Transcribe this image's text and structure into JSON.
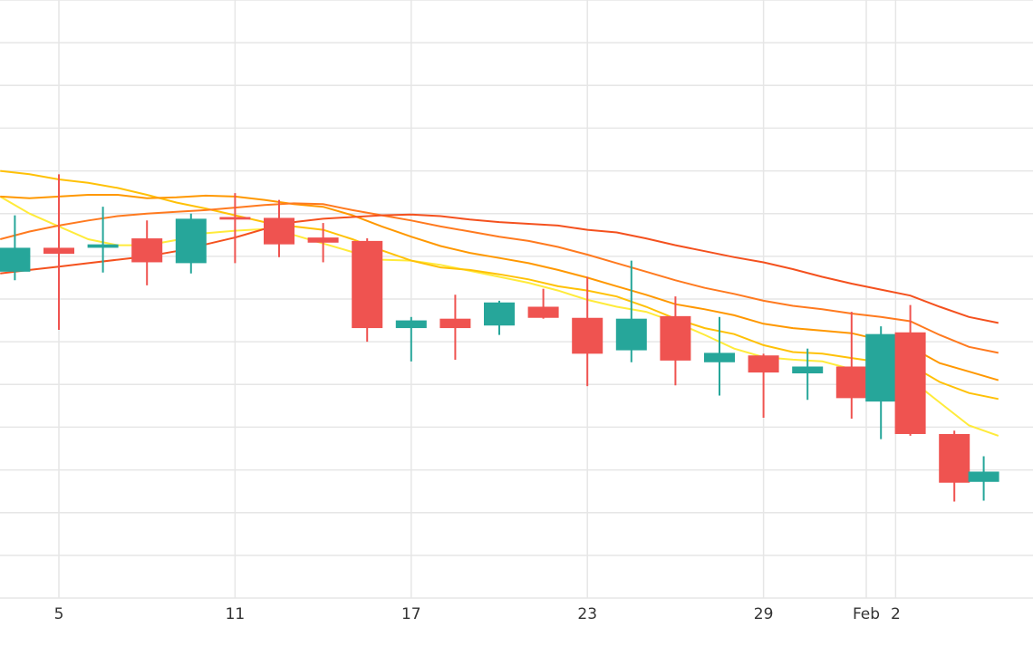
{
  "chart_data": {
    "type": "candlestick",
    "title": "",
    "xlabel": "",
    "ylabel": "",
    "x_ticks": [
      {
        "day": 5,
        "label": "5"
      },
      {
        "day": 11,
        "label": "11"
      },
      {
        "day": 17,
        "label": "17"
      },
      {
        "day": 23,
        "label": "23"
      },
      {
        "day": 29,
        "label": "29"
      },
      {
        "day": 32.5,
        "label": "Feb"
      },
      {
        "day": 33.5,
        "label": "2"
      }
    ],
    "x_range": [
      3,
      36.5
    ],
    "y_range": [
      0,
      70
    ],
    "grid": true,
    "up_color": "#26a69a",
    "down_color": "#ef5350",
    "candles": [
      {
        "day": 3.5,
        "open": 38.2,
        "high": 44.8,
        "low": 37.2,
        "close": 41.0
      },
      {
        "day": 5,
        "open": 41.0,
        "high": 49.6,
        "low": 31.4,
        "close": 40.3
      },
      {
        "day": 6.5,
        "open": 41.0,
        "high": 45.8,
        "low": 38.1,
        "close": 41.4
      },
      {
        "day": 8,
        "open": 42.1,
        "high": 44.2,
        "low": 36.6,
        "close": 39.3
      },
      {
        "day": 9.5,
        "open": 39.2,
        "high": 45.0,
        "low": 38.0,
        "close": 44.4
      },
      {
        "day": 11,
        "open": 44.6,
        "high": 47.4,
        "low": 39.2,
        "close": 44.3
      },
      {
        "day": 12.5,
        "open": 44.5,
        "high": 46.6,
        "low": 39.9,
        "close": 41.4
      },
      {
        "day": 14,
        "open": 42.2,
        "high": 43.9,
        "low": 39.3,
        "close": 41.6
      },
      {
        "day": 15.5,
        "open": 41.8,
        "high": 42.1,
        "low": 30.0,
        "close": 31.6
      },
      {
        "day": 17,
        "open": 31.6,
        "high": 32.9,
        "low": 27.7,
        "close": 32.5
      },
      {
        "day": 18.5,
        "open": 32.7,
        "high": 35.5,
        "low": 27.9,
        "close": 31.6
      },
      {
        "day": 20,
        "open": 31.9,
        "high": 34.8,
        "low": 30.8,
        "close": 34.6
      },
      {
        "day": 21.5,
        "open": 34.1,
        "high": 36.2,
        "low": 32.7,
        "close": 32.8
      },
      {
        "day": 23,
        "open": 32.8,
        "high": 37.6,
        "low": 24.8,
        "close": 28.6
      },
      {
        "day": 24.5,
        "open": 29.0,
        "high": 39.5,
        "low": 27.6,
        "close": 32.7
      },
      {
        "day": 26,
        "open": 33.0,
        "high": 35.3,
        "low": 24.9,
        "close": 27.8
      },
      {
        "day": 27.5,
        "open": 27.6,
        "high": 32.9,
        "low": 23.7,
        "close": 28.7
      },
      {
        "day": 29,
        "open": 28.4,
        "high": 28.6,
        "low": 21.1,
        "close": 26.4
      },
      {
        "day": 30.5,
        "open": 26.3,
        "high": 29.2,
        "low": 23.2,
        "close": 27.1
      },
      {
        "day": 32,
        "open": 27.1,
        "high": 33.5,
        "low": 21.0,
        "close": 23.4
      },
      {
        "day": 33,
        "open": 23.0,
        "high": 31.8,
        "low": 18.6,
        "close": 30.9
      },
      {
        "day": 34,
        "open": 31.1,
        "high": 34.3,
        "low": 19.0,
        "close": 19.2
      },
      {
        "day": 35.5,
        "open": 19.2,
        "high": 19.6,
        "low": 11.3,
        "close": 13.5
      },
      {
        "day": 36.5,
        "open": 13.6,
        "high": 16.6,
        "low": 11.4,
        "close": 14.8
      }
    ],
    "series": [
      {
        "color": "#ffeb3b",
        "points": [
          [
            3,
            47.0
          ],
          [
            4,
            45.0
          ],
          [
            5,
            43.5
          ],
          [
            6,
            42.0
          ],
          [
            7,
            41.3
          ],
          [
            8,
            41.3
          ],
          [
            9,
            41.9
          ],
          [
            10,
            42.7
          ],
          [
            11,
            43.0
          ],
          [
            12,
            43.2
          ],
          [
            13,
            42.5
          ],
          [
            14,
            41.5
          ],
          [
            15,
            40.5
          ],
          [
            16,
            39.6
          ],
          [
            17,
            39.5
          ],
          [
            18,
            39.0
          ],
          [
            19,
            38.3
          ],
          [
            20,
            37.6
          ],
          [
            21,
            36.9
          ],
          [
            22,
            36.0
          ],
          [
            23,
            34.9
          ],
          [
            24,
            34.1
          ],
          [
            25,
            33.5
          ],
          [
            26,
            32.3
          ],
          [
            27,
            30.8
          ],
          [
            28,
            29.2
          ],
          [
            29,
            28.2
          ],
          [
            30,
            27.9
          ],
          [
            31,
            27.7
          ],
          [
            32,
            26.8
          ],
          [
            33,
            26.0
          ],
          [
            34,
            25.6
          ],
          [
            35,
            22.9
          ],
          [
            36,
            20.2
          ],
          [
            37,
            19.0
          ]
        ]
      },
      {
        "color": "#ffc107",
        "points": [
          [
            3,
            50.0
          ],
          [
            4,
            49.6
          ],
          [
            5,
            49.0
          ],
          [
            6,
            48.6
          ],
          [
            7,
            48.0
          ],
          [
            8,
            47.2
          ],
          [
            9,
            46.3
          ],
          [
            10,
            45.6
          ],
          [
            11,
            44.8
          ],
          [
            12,
            44.0
          ],
          [
            13,
            43.5
          ],
          [
            14,
            43.1
          ],
          [
            15,
            42.0
          ],
          [
            16,
            40.7
          ],
          [
            17,
            39.5
          ],
          [
            18,
            38.7
          ],
          [
            19,
            38.4
          ],
          [
            20,
            37.9
          ],
          [
            21,
            37.3
          ],
          [
            22,
            36.5
          ],
          [
            23,
            36.0
          ],
          [
            24,
            35.3
          ],
          [
            25,
            34.1
          ],
          [
            26,
            32.7
          ],
          [
            27,
            31.6
          ],
          [
            28,
            30.9
          ],
          [
            29,
            29.6
          ],
          [
            30,
            28.8
          ],
          [
            31,
            28.6
          ],
          [
            32,
            28.1
          ],
          [
            33,
            27.6
          ],
          [
            34,
            27.3
          ],
          [
            35,
            25.3
          ],
          [
            36,
            24.0
          ],
          [
            37,
            23.3
          ]
        ]
      },
      {
        "color": "#ff9800",
        "points": [
          [
            3,
            47.0
          ],
          [
            4,
            46.8
          ],
          [
            5,
            47.0
          ],
          [
            6,
            47.2
          ],
          [
            7,
            47.2
          ],
          [
            8,
            46.8
          ],
          [
            9,
            46.9
          ],
          [
            10,
            47.1
          ],
          [
            11,
            47.0
          ],
          [
            12,
            46.6
          ],
          [
            13,
            46.1
          ],
          [
            14,
            45.8
          ],
          [
            15,
            44.8
          ],
          [
            16,
            43.5
          ],
          [
            17,
            42.3
          ],
          [
            18,
            41.2
          ],
          [
            19,
            40.4
          ],
          [
            20,
            39.8
          ],
          [
            21,
            39.2
          ],
          [
            22,
            38.4
          ],
          [
            23,
            37.5
          ],
          [
            24,
            36.5
          ],
          [
            25,
            35.5
          ],
          [
            26,
            34.4
          ],
          [
            27,
            33.8
          ],
          [
            28,
            33.1
          ],
          [
            29,
            32.1
          ],
          [
            30,
            31.6
          ],
          [
            31,
            31.3
          ],
          [
            32,
            31.0
          ],
          [
            33,
            30.2
          ],
          [
            34,
            29.4
          ],
          [
            35,
            27.5
          ],
          [
            36,
            26.5
          ],
          [
            37,
            25.5
          ]
        ]
      },
      {
        "color": "#ff7a1f",
        "points": [
          [
            3,
            42.0
          ],
          [
            4,
            42.9
          ],
          [
            5,
            43.6
          ],
          [
            6,
            44.2
          ],
          [
            7,
            44.7
          ],
          [
            8,
            45.0
          ],
          [
            9,
            45.2
          ],
          [
            10,
            45.4
          ],
          [
            11,
            45.7
          ],
          [
            12,
            46.0
          ],
          [
            13,
            46.2
          ],
          [
            14,
            46.1
          ],
          [
            15,
            45.4
          ],
          [
            16,
            44.8
          ],
          [
            17,
            44.2
          ],
          [
            18,
            43.5
          ],
          [
            19,
            42.9
          ],
          [
            20,
            42.3
          ],
          [
            21,
            41.8
          ],
          [
            22,
            41.1
          ],
          [
            23,
            40.2
          ],
          [
            24,
            39.2
          ],
          [
            25,
            38.2
          ],
          [
            26,
            37.2
          ],
          [
            27,
            36.3
          ],
          [
            28,
            35.6
          ],
          [
            29,
            34.8
          ],
          [
            30,
            34.2
          ],
          [
            31,
            33.8
          ],
          [
            32,
            33.3
          ],
          [
            33,
            32.9
          ],
          [
            34,
            32.4
          ],
          [
            35,
            30.8
          ],
          [
            36,
            29.4
          ],
          [
            37,
            28.7
          ]
        ]
      },
      {
        "color": "#f4511e",
        "points": [
          [
            3,
            38.0
          ],
          [
            4,
            38.4
          ],
          [
            5,
            38.8
          ],
          [
            6,
            39.2
          ],
          [
            7,
            39.6
          ],
          [
            8,
            40.0
          ],
          [
            9,
            40.6
          ],
          [
            10,
            41.4
          ],
          [
            11,
            42.2
          ],
          [
            12,
            43.2
          ],
          [
            13,
            44.0
          ],
          [
            14,
            44.4
          ],
          [
            15,
            44.6
          ],
          [
            16,
            44.8
          ],
          [
            17,
            44.9
          ],
          [
            18,
            44.7
          ],
          [
            19,
            44.3
          ],
          [
            20,
            44.0
          ],
          [
            21,
            43.8
          ],
          [
            22,
            43.6
          ],
          [
            23,
            43.1
          ],
          [
            24,
            42.8
          ],
          [
            25,
            42.1
          ],
          [
            26,
            41.3
          ],
          [
            27,
            40.6
          ],
          [
            28,
            39.9
          ],
          [
            29,
            39.3
          ],
          [
            30,
            38.5
          ],
          [
            31,
            37.6
          ],
          [
            32,
            36.8
          ],
          [
            33,
            36.1
          ],
          [
            34,
            35.4
          ],
          [
            35,
            34.1
          ],
          [
            36,
            32.9
          ],
          [
            37,
            32.2
          ]
        ]
      }
    ]
  }
}
